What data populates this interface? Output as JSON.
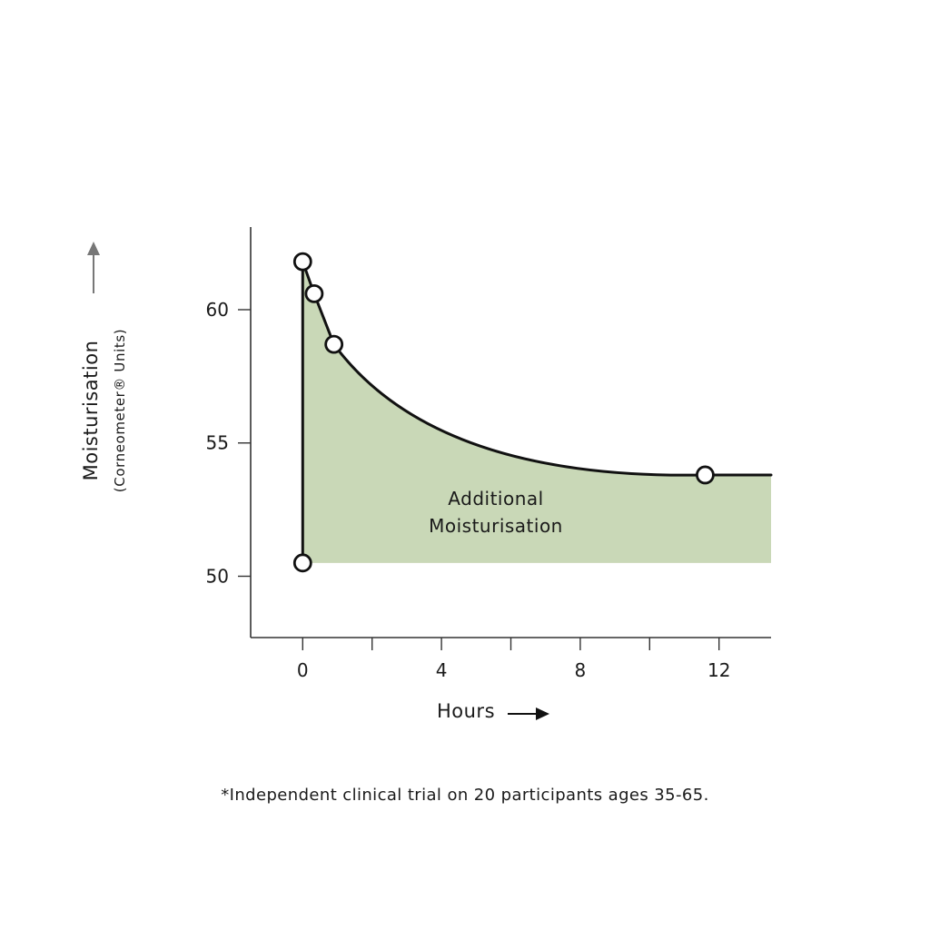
{
  "chart_data": {
    "type": "area",
    "title": "",
    "xlabel": "Hours",
    "ylabel": "Moisturisation",
    "ylabel_sub": "(Corneometer® Units)",
    "x_ticks": [
      0,
      2,
      4,
      6,
      8,
      10,
      12
    ],
    "x_tick_labels": [
      "0",
      "4",
      "8",
      "12"
    ],
    "y_ticks": [
      50,
      55,
      60
    ],
    "y_tick_labels": [
      "50",
      "55",
      "60"
    ],
    "xlim": [
      -1.5,
      13.5
    ],
    "ylim": [
      47.7,
      63.1
    ],
    "baseline": 50.5,
    "series": [
      {
        "name": "Moisturisation",
        "points": [
          {
            "x": 0,
            "y": 61.8
          },
          {
            "x": 0.33,
            "y": 60.6
          },
          {
            "x": 0.9,
            "y": 58.7
          },
          {
            "x": 11.6,
            "y": 53.8
          }
        ],
        "baseline_point": {
          "x": 0,
          "y": 50.5
        },
        "end": {
          "x": 13.5,
          "y": 53.8
        }
      }
    ],
    "area_label": [
      "Additional",
      "Moisturisation"
    ],
    "fill_color": "#c9d8b7",
    "line_color": "#111111",
    "axis_color": "#333333",
    "arrow_color_y": "#777777",
    "arrow_color_x": "#111111"
  },
  "footnote": "*Independent clinical trial on 20 participants ages 35-65."
}
